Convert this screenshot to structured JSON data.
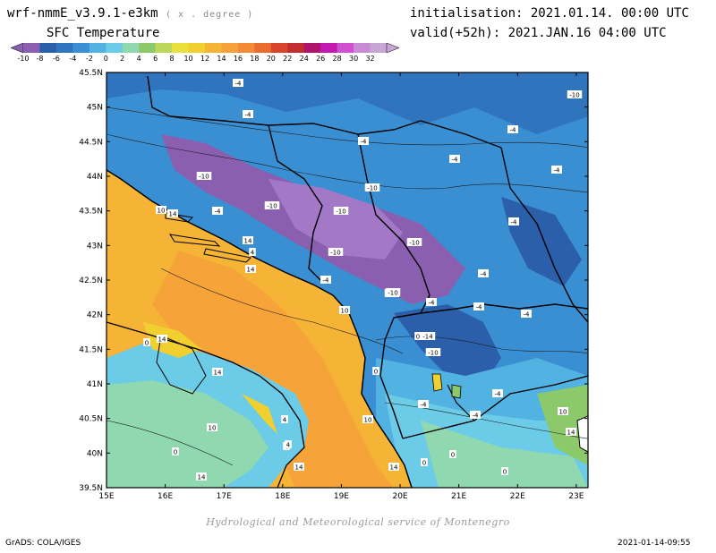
{
  "header": {
    "model": "wrf-nmmE_v3.9.1-e3km",
    "units": "( x . degree )",
    "field": "SFC Temperature",
    "init": "initialisation: 2021.01.14. 00:00 UTC",
    "valid": "valid(+52h): 2021.JAN.16 04:00 UTC"
  },
  "colorbar": {
    "labels": [
      "-10",
      "-8",
      "-6",
      "-4",
      "-2",
      "0",
      "2",
      "4",
      "6",
      "8",
      "10",
      "12",
      "14",
      "16",
      "18",
      "20",
      "22",
      "24",
      "26",
      "28",
      "30",
      "32"
    ],
    "colors": [
      "#8a5fb0",
      "#2b5faa",
      "#2f74bd",
      "#3a8fd2",
      "#52b2e2",
      "#6ccbe6",
      "#8fd8b0",
      "#8cc96a",
      "#bcd85b",
      "#e9e03c",
      "#f1cf2f",
      "#f5b435",
      "#f6a13a",
      "#f28a36",
      "#ea6b2f",
      "#d9452b",
      "#c42d30",
      "#b0136b",
      "#c21ab0",
      "#d150d0",
      "#c98bd4",
      "#c7a6d6"
    ]
  },
  "map": {
    "lat_labels": [
      "45.5N",
      "45N",
      "44.5N",
      "44N",
      "43.5N",
      "43N",
      "42.5N",
      "42N",
      "41.5N",
      "41N",
      "40.5N",
      "40N",
      "39.5N"
    ],
    "lon_labels": [
      "15E",
      "16E",
      "17E",
      "18E",
      "19E",
      "20E",
      "21E",
      "22E",
      "23E"
    ],
    "contour_labels": [
      "-4",
      "-4",
      "-10",
      "-4",
      "-4",
      "-4",
      "-10",
      "-10",
      "-10",
      "-4",
      "-10",
      "-10",
      "-10",
      "-4",
      "-10",
      "-4",
      "-14",
      "-10",
      "-4",
      "-4",
      "-4",
      "-4",
      "-4",
      "-4",
      "-4",
      "0",
      "0",
      "4",
      "10",
      "14",
      "10",
      "14",
      "14",
      "10",
      "14",
      "4",
      "14",
      "10",
      "0",
      "14",
      "0",
      "14",
      "4",
      "14",
      "10",
      "14",
      "0",
      "0",
      "0",
      "-4",
      "-10",
      "4"
    ]
  },
  "footer": {
    "credit": "Hydrological and Meteorological service of Montenegro",
    "software": "GrADS: COLA/IGES",
    "timestamp": "2021-01-14-09:55"
  }
}
